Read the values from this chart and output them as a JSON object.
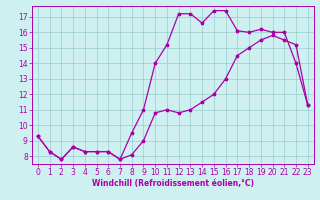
{
  "title": "",
  "xlabel": "Windchill (Refroidissement éolien,°C)",
  "bg_color": "#cff0f0",
  "grid_color": "#99cccc",
  "line_color": "#aa00aa",
  "spine_color": "#aa00aa",
  "xlim": [
    -0.5,
    23.5
  ],
  "ylim": [
    7.5,
    17.7
  ],
  "xticks": [
    0,
    1,
    2,
    3,
    4,
    5,
    6,
    7,
    8,
    9,
    10,
    11,
    12,
    13,
    14,
    15,
    16,
    17,
    18,
    19,
    20,
    21,
    22,
    23
  ],
  "yticks": [
    8,
    9,
    10,
    11,
    12,
    13,
    14,
    15,
    16,
    17
  ],
  "line1_x": [
    0,
    1,
    2,
    3,
    4,
    5,
    6,
    7,
    8,
    9,
    10,
    11,
    12,
    13,
    14,
    15,
    16,
    17,
    18,
    19,
    20,
    21,
    22,
    23
  ],
  "line1_y": [
    9.3,
    8.3,
    7.8,
    8.6,
    8.3,
    8.3,
    8.3,
    7.8,
    8.1,
    9.0,
    10.8,
    11.0,
    10.8,
    11.0,
    11.5,
    12.0,
    13.0,
    14.5,
    15.0,
    15.5,
    15.8,
    15.5,
    15.2,
    11.3
  ],
  "line2_x": [
    0,
    1,
    2,
    3,
    4,
    5,
    6,
    7,
    8,
    9,
    10,
    11,
    12,
    13,
    14,
    15,
    16,
    17,
    18,
    19,
    20,
    21,
    22,
    23
  ],
  "line2_y": [
    9.3,
    8.3,
    7.8,
    8.6,
    8.3,
    8.3,
    8.3,
    7.8,
    9.5,
    11.0,
    14.0,
    15.2,
    17.2,
    17.2,
    16.6,
    17.4,
    17.4,
    16.1,
    16.0,
    16.2,
    16.0,
    16.0,
    14.0,
    11.3
  ],
  "tick_fontsize": 5.5,
  "xlabel_fontsize": 5.5,
  "linewidth": 0.9,
  "markersize": 2.5
}
